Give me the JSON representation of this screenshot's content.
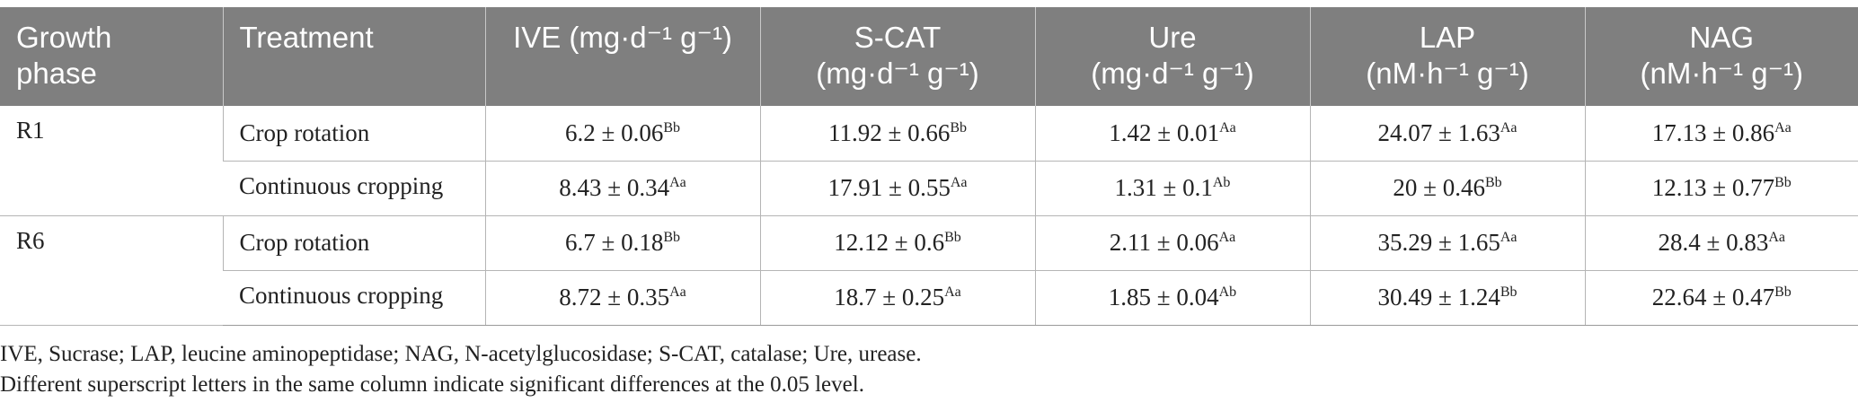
{
  "table": {
    "headers": [
      {
        "main": "Growth",
        "sub": "phase"
      },
      {
        "main": "Treatment",
        "sub": ""
      },
      {
        "main": "IVE (mg·d⁻¹ g⁻¹)",
        "sub": ""
      },
      {
        "main": "S-CAT",
        "sub": "(mg·d⁻¹ g⁻¹)"
      },
      {
        "main": "Ure",
        "sub": "(mg·d⁻¹ g⁻¹)"
      },
      {
        "main": "LAP",
        "sub": "(nM·h⁻¹ g⁻¹)"
      },
      {
        "main": "NAG",
        "sub": "(nM·h⁻¹ g⁻¹)"
      }
    ],
    "groups": [
      {
        "phase": "R1",
        "rows": [
          {
            "treatment": "Crop rotation",
            "cells": [
              {
                "value": "6.2 ± 0.06",
                "sup": "Bb"
              },
              {
                "value": "11.92 ± 0.66",
                "sup": "Bb"
              },
              {
                "value": "1.42 ± 0.01",
                "sup": "Aa"
              },
              {
                "value": "24.07 ± 1.63",
                "sup": "Aa"
              },
              {
                "value": "17.13 ± 0.86",
                "sup": "Aa"
              }
            ]
          },
          {
            "treatment": "Continuous cropping",
            "cells": [
              {
                "value": "8.43 ± 0.34",
                "sup": "Aa"
              },
              {
                "value": "17.91 ± 0.55",
                "sup": "Aa"
              },
              {
                "value": "1.31 ± 0.1",
                "sup": "Ab"
              },
              {
                "value": "20 ± 0.46",
                "sup": "Bb"
              },
              {
                "value": "12.13 ± 0.77",
                "sup": "Bb"
              }
            ]
          }
        ]
      },
      {
        "phase": "R6",
        "rows": [
          {
            "treatment": "Crop rotation",
            "cells": [
              {
                "value": "6.7 ± 0.18",
                "sup": "Bb"
              },
              {
                "value": "12.12 ± 0.6",
                "sup": "Bb"
              },
              {
                "value": "2.11 ± 0.06",
                "sup": "Aa"
              },
              {
                "value": "35.29 ± 1.65",
                "sup": "Aa"
              },
              {
                "value": "28.4 ± 0.83",
                "sup": "Aa"
              }
            ]
          },
          {
            "treatment": "Continuous cropping",
            "cells": [
              {
                "value": "8.72 ± 0.35",
                "sup": "Aa"
              },
              {
                "value": "18.7 ± 0.25",
                "sup": "Aa"
              },
              {
                "value": "1.85 ± 0.04",
                "sup": "Ab"
              },
              {
                "value": "30.49 ± 1.24",
                "sup": "Bb"
              },
              {
                "value": "22.64 ± 0.47",
                "sup": "Bb"
              }
            ]
          }
        ]
      }
    ]
  },
  "footnotes": {
    "abbreviations": "IVE, Sucrase; LAP, leucine aminopeptidase; NAG, N-acetylglucosidase; S-CAT, catalase; Ure, urease.",
    "significance": "Different superscript letters in the same column indicate significant differences at the 0.05 level."
  },
  "colors": {
    "header_bg": "#7f7f7f",
    "header_text": "#ffffff",
    "grid": "#b5b5b5"
  }
}
